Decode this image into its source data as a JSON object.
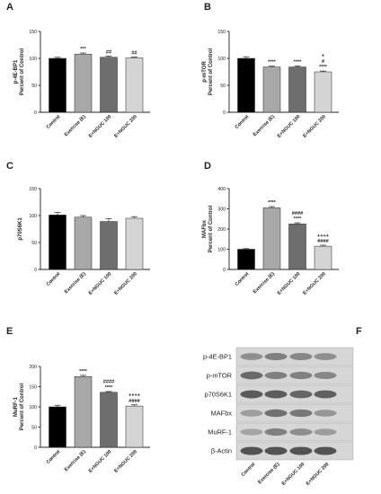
{
  "chart_data": [
    {
      "panel": "A",
      "type": "bar",
      "ylabel": [
        "p-4E-BP1",
        "Percent of Control"
      ],
      "ylim": [
        0,
        150
      ],
      "yticks": [
        0,
        50,
        100,
        150
      ],
      "categories": [
        "Control",
        "Exercise (E)",
        "E+NGUC 100",
        "E+NGUC 200"
      ],
      "values": [
        100,
        108,
        102,
        101
      ],
      "errors": [
        2,
        2,
        2,
        1.5
      ],
      "colors": [
        "#000000",
        "#a8a8a8",
        "#6e6e6e",
        "#d4d4d4"
      ],
      "annotations": [
        [],
        [
          "***"
        ],
        [
          "##"
        ],
        [
          "##"
        ]
      ]
    },
    {
      "panel": "B",
      "type": "bar",
      "ylabel": [
        "p-mTOR",
        "Percent of Control"
      ],
      "ylim": [
        0,
        150
      ],
      "yticks": [
        0,
        50,
        100,
        150
      ],
      "categories": [
        "Control",
        "Exercise (E)",
        "E+NGUC 100",
        "E+NGUC 200"
      ],
      "values": [
        100,
        84,
        84,
        75
      ],
      "errors": [
        3,
        1.5,
        2,
        1.5
      ],
      "colors": [
        "#000000",
        "#a8a8a8",
        "#6e6e6e",
        "#d4d4d4"
      ],
      "annotations": [
        [],
        [
          "****"
        ],
        [
          "****"
        ],
        [
          "+",
          "#",
          "****"
        ]
      ]
    },
    {
      "panel": "C",
      "type": "bar",
      "ylabel": [
        "p70S6K1"
      ],
      "ylim": [
        0,
        150
      ],
      "yticks": [
        0,
        50,
        100,
        150
      ],
      "categories": [
        "Control",
        "Exercise (E)",
        "E+NGUC 100",
        "E+NGUC 200"
      ],
      "values": [
        101,
        97,
        89,
        95
      ],
      "errors": [
        5,
        3,
        5,
        3
      ],
      "colors": [
        "#000000",
        "#a8a8a8",
        "#6e6e6e",
        "#d4d4d4"
      ],
      "annotations": [
        [],
        [],
        [],
        []
      ]
    },
    {
      "panel": "D",
      "type": "bar",
      "ylabel": [
        "MAFbx",
        "Percent of Control"
      ],
      "ylim": [
        0,
        400
      ],
      "yticks": [
        0,
        100,
        200,
        300,
        400
      ],
      "categories": [
        "Control",
        "Exercise (E)",
        "E+NGUC 100",
        "E+NGUC 200"
      ],
      "values": [
        100,
        305,
        225,
        115
      ],
      "errors": [
        3,
        6,
        6,
        5
      ],
      "colors": [
        "#000000",
        "#a8a8a8",
        "#6e6e6e",
        "#d4d4d4"
      ],
      "annotations": [
        [],
        [
          "****"
        ],
        [
          "####",
          "****"
        ],
        [
          "++++",
          "####"
        ]
      ]
    },
    {
      "panel": "E",
      "type": "bar",
      "ylabel": [
        "MuRF-1",
        "Percent of Control"
      ],
      "ylim": [
        0,
        200
      ],
      "yticks": [
        0,
        50,
        100,
        150,
        200
      ],
      "categories": [
        "Control",
        "Exercise (E)",
        "E+NGUC 100",
        "E+NGUC 200"
      ],
      "values": [
        100,
        175,
        136,
        102
      ],
      "errors": [
        4,
        3,
        2,
        3
      ],
      "colors": [
        "#000000",
        "#a8a8a8",
        "#6e6e6e",
        "#d4d4d4"
      ],
      "annotations": [
        [],
        [
          "****"
        ],
        [
          "####",
          "****"
        ],
        [
          "++++",
          "####"
        ]
      ]
    }
  ],
  "blot": {
    "panel": "F",
    "rows": [
      "p-4E-BP1",
      "p-mTOR",
      "p70S6K1",
      "MAFbx",
      "MuRF-1",
      "β-Actin"
    ],
    "lanes": [
      "Control",
      "Exercise (E)",
      "E+NGUC 100",
      "E+NGUC 200"
    ]
  }
}
